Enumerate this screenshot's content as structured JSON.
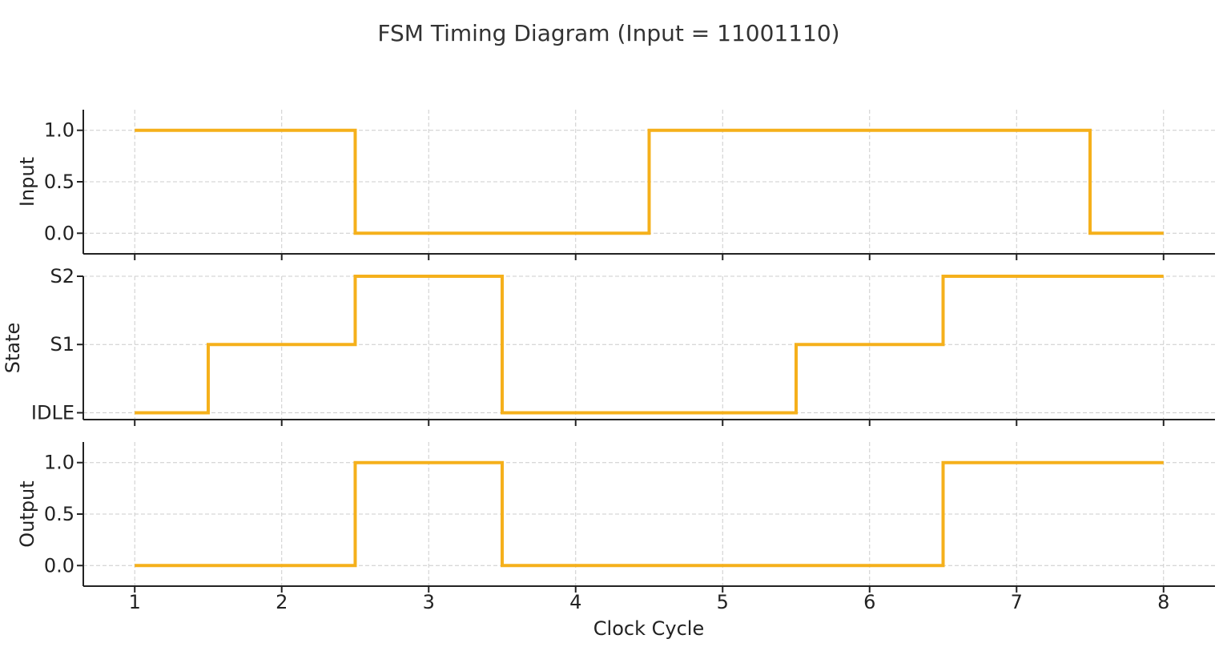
{
  "chart_data": {
    "type": "line",
    "step": "mid",
    "title": "FSM Timing Diagram (Input = 11001110)",
    "xlabel": "Clock Cycle",
    "x": [
      1,
      2,
      3,
      4,
      5,
      6,
      7,
      8
    ],
    "xticks": [
      "1",
      "2",
      "3",
      "4",
      "5",
      "6",
      "7",
      "8"
    ],
    "xlim": [
      0.65,
      8.35
    ],
    "grid": true,
    "color": "#f5b01b",
    "panels": [
      {
        "name": "input",
        "ylabel": "Input",
        "values": [
          1,
          1,
          0,
          0,
          1,
          1,
          1,
          0
        ],
        "ylim": [
          -0.2,
          1.2
        ],
        "yticks": [
          0.0,
          0.5,
          1.0
        ],
        "yticklabels": [
          "0.0",
          "0.5",
          "1.0"
        ]
      },
      {
        "name": "state",
        "ylabel": "State",
        "values": [
          0,
          1,
          2,
          0,
          0,
          1,
          2,
          2
        ],
        "ylim": [
          -0.1,
          2.0
        ],
        "yticks": [
          0,
          1,
          2
        ],
        "yticklabels": [
          "IDLE",
          "S1",
          "S2"
        ]
      },
      {
        "name": "output",
        "ylabel": "Output",
        "values": [
          0,
          0,
          1,
          0,
          0,
          0,
          1,
          1
        ],
        "ylim": [
          -0.2,
          1.2
        ],
        "yticks": [
          0.0,
          0.5,
          1.0
        ],
        "yticklabels": [
          "0.0",
          "0.5",
          "1.0"
        ]
      }
    ]
  }
}
